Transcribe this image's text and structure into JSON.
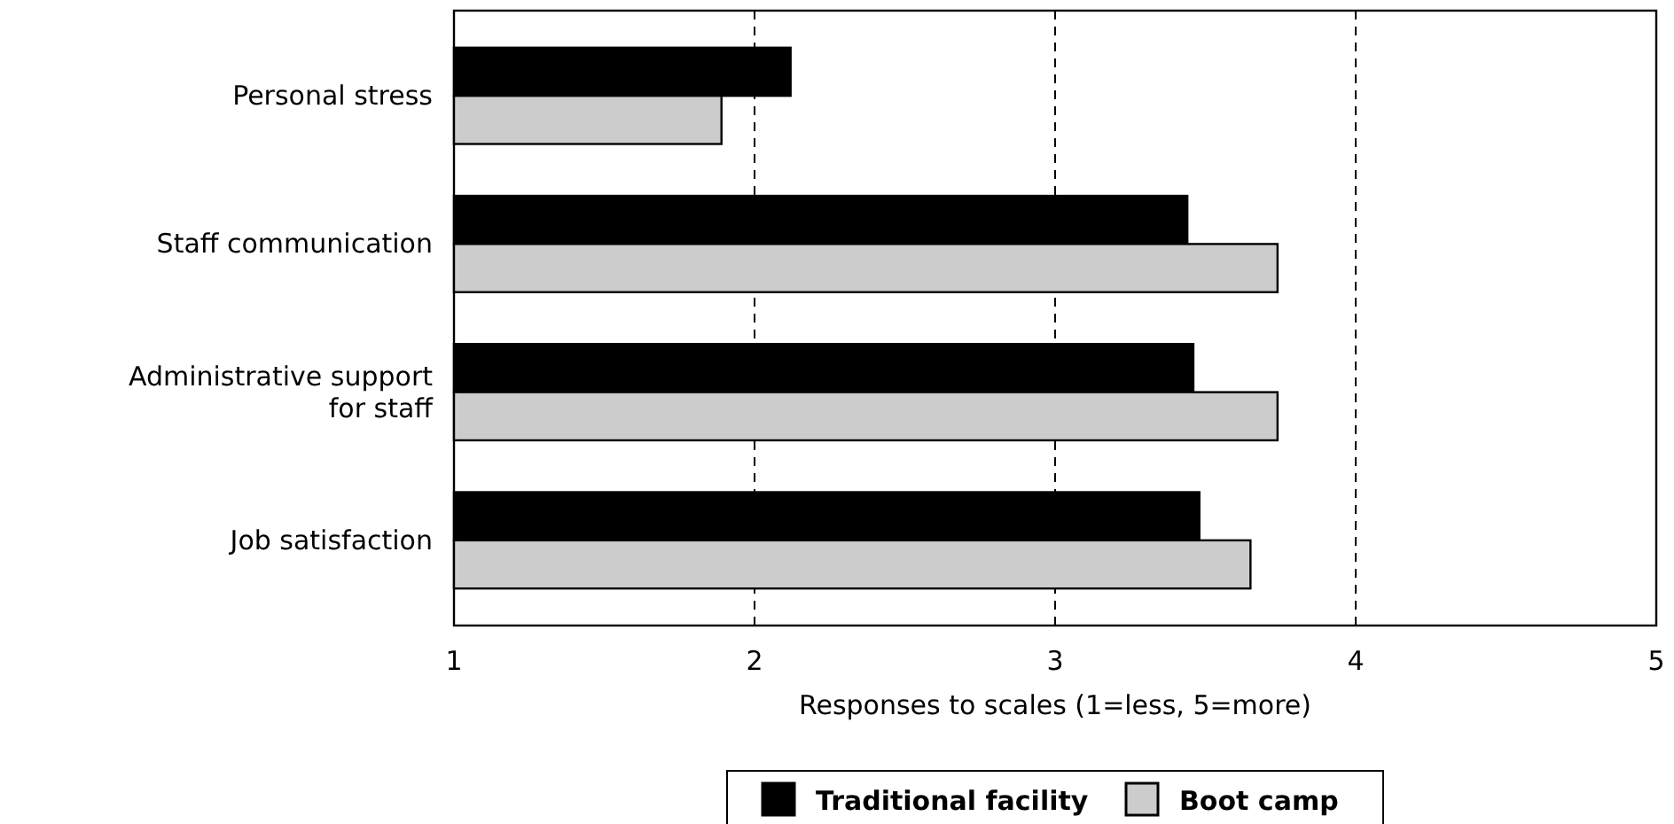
{
  "chart_data": {
    "type": "bar",
    "orientation": "horizontal",
    "categories": [
      "Personal stress",
      "Staff communication",
      "Administrative support\nfor staff",
      "Job satisfaction"
    ],
    "series": [
      {
        "name": "Traditional facility",
        "color": "#000000",
        "values": [
          2.12,
          3.44,
          3.46,
          3.48
        ]
      },
      {
        "name": "Boot camp",
        "color": "#cccccc",
        "values": [
          1.89,
          3.74,
          3.74,
          3.65
        ]
      }
    ],
    "xlim": [
      1,
      5
    ],
    "xticks": [
      1,
      2,
      3,
      4,
      5
    ],
    "xlabel": "Responses to scales (1=less, 5=more)",
    "grid": "x",
    "legend": "bottom"
  }
}
